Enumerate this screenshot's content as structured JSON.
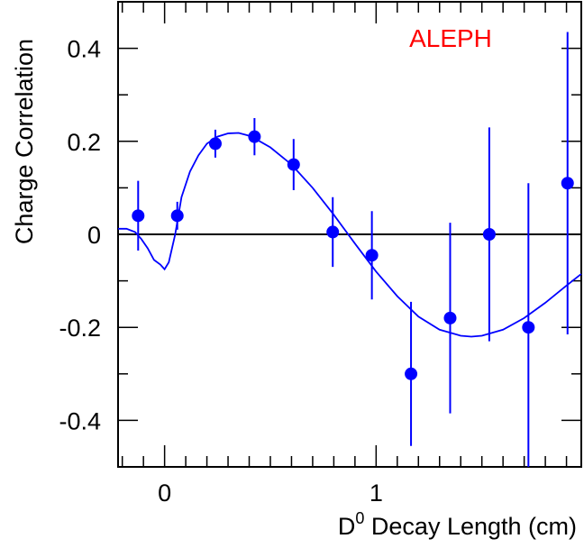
{
  "chart_data": {
    "type": "scatter",
    "title": "",
    "annotation": "ALEPH",
    "annotation_color": "#ff0000",
    "xlabel_base": "D",
    "xlabel_sup": "0",
    "xlabel_rest": " Decay Length (cm)",
    "ylabel": "Charge Correlation",
    "xlim": [
      -0.22,
      1.97
    ],
    "ylim": [
      -0.5,
      0.5
    ],
    "x_ticks": [
      {
        "v": 0,
        "label": "0"
      },
      {
        "v": 1,
        "label": "1"
      }
    ],
    "y_ticks": [
      {
        "v": -0.4,
        "label": "-0.4"
      },
      {
        "v": -0.2,
        "label": "-0.2"
      },
      {
        "v": 0,
        "label": "0"
      },
      {
        "v": 0.2,
        "label": "0.2"
      },
      {
        "v": 0.4,
        "label": "0.4"
      }
    ],
    "zero_line": true,
    "marker_color": "#0000ff",
    "curve_color": "#0000ff",
    "points": [
      {
        "x": -0.125,
        "y": 0.04,
        "err": 0.075
      },
      {
        "x": 0.06,
        "y": 0.04,
        "err": 0.03
      },
      {
        "x": 0.24,
        "y": 0.195,
        "err": 0.03
      },
      {
        "x": 0.425,
        "y": 0.21,
        "err": 0.04
      },
      {
        "x": 0.61,
        "y": 0.15,
        "err": 0.055
      },
      {
        "x": 0.795,
        "y": 0.005,
        "err": 0.075
      },
      {
        "x": 0.98,
        "y": -0.045,
        "err": 0.095
      },
      {
        "x": 1.165,
        "y": -0.3,
        "err": 0.155
      },
      {
        "x": 1.35,
        "y": -0.18,
        "err": 0.205
      },
      {
        "x": 1.535,
        "y": 0.0,
        "err": 0.23
      },
      {
        "x": 1.72,
        "y": -0.2,
        "err": 0.31
      },
      {
        "x": 1.905,
        "y": 0.11,
        "err": 0.325
      }
    ],
    "fit_curve": {
      "x": [
        -0.22,
        -0.18,
        -0.14,
        -0.11,
        -0.08,
        -0.05,
        -0.02,
        0.0,
        0.02,
        0.05,
        0.08,
        0.12,
        0.16,
        0.2,
        0.25,
        0.3,
        0.35,
        0.4,
        0.45,
        0.5,
        0.6,
        0.7,
        0.8,
        0.9,
        1.0,
        1.1,
        1.2,
        1.3,
        1.4,
        1.45,
        1.5,
        1.6,
        1.7,
        1.8,
        1.9,
        1.97
      ],
      "y": [
        0.012,
        0.012,
        0.005,
        -0.01,
        -0.03,
        -0.055,
        -0.065,
        -0.075,
        -0.06,
        0.0,
        0.08,
        0.135,
        0.17,
        0.195,
        0.21,
        0.217,
        0.218,
        0.212,
        0.2,
        0.187,
        0.15,
        0.1,
        0.042,
        -0.02,
        -0.08,
        -0.133,
        -0.177,
        -0.205,
        -0.218,
        -0.22,
        -0.218,
        -0.205,
        -0.18,
        -0.147,
        -0.11,
        -0.085
      ]
    }
  }
}
